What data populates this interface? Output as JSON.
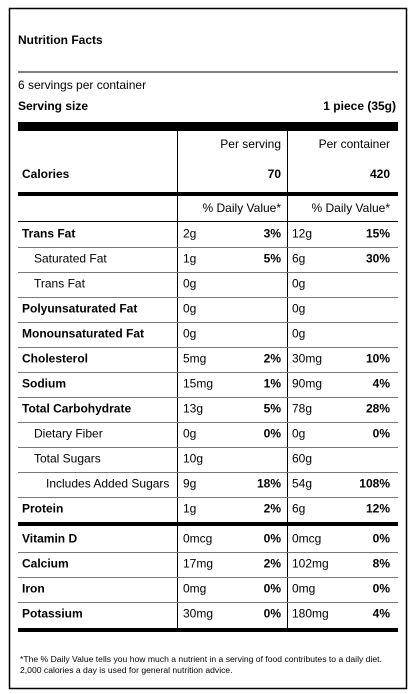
{
  "title": "Nutrition Facts",
  "servings": "6 servings per container",
  "serving_size": {
    "label": "Serving size",
    "value": "1 piece (35g)"
  },
  "columns": {
    "per_serving": "Per serving",
    "per_container": "Per container"
  },
  "calories": {
    "label": "Calories",
    "per_serving": "70",
    "per_container": "420"
  },
  "daily_value_header": {
    "per_serving": "% Daily Value*",
    "per_container": "% Daily Value*"
  },
  "nutrients": [
    {
      "name": "Trans Fat",
      "level": 0,
      "bold": true,
      "serving": "2g",
      "serving_dv": "3%",
      "container": "12g",
      "container_dv": "15%"
    },
    {
      "name": "Saturated Fat",
      "level": 1,
      "bold": false,
      "serving": "1g",
      "serving_dv": "5%",
      "container": "6g",
      "container_dv": "30%"
    },
    {
      "name": "Trans Fat",
      "level": 1,
      "bold": false,
      "serving": "0g",
      "container": "0g"
    },
    {
      "name": "Polyunsaturated Fat",
      "level": 0,
      "bold": true,
      "serving": "0g",
      "container": "0g"
    },
    {
      "name": "Monounsaturated Fat",
      "level": 0,
      "bold": true,
      "serving": "0g",
      "container": "0g"
    },
    {
      "name": "Cholesterol",
      "level": 0,
      "bold": true,
      "serving": "5mg",
      "serving_dv": "2%",
      "container": "30mg",
      "container_dv": "10%"
    },
    {
      "name": "Sodium",
      "level": 0,
      "bold": true,
      "serving": "15mg",
      "serving_dv": "1%",
      "container": "90mg",
      "container_dv": "4%"
    },
    {
      "name": "Total Carbohydrate",
      "level": 0,
      "bold": true,
      "serving": "13g",
      "serving_dv": "5%",
      "container": "78g",
      "container_dv": "28%"
    },
    {
      "name": "Dietary Fiber",
      "level": 1,
      "bold": false,
      "serving": "0g",
      "serving_dv": "0%",
      "container": "0g",
      "container_dv": "0%"
    },
    {
      "name": "Total Sugars",
      "level": 1,
      "bold": false,
      "serving": "10g",
      "container": "60g"
    },
    {
      "name": "Includes Added Sugars",
      "level": 2,
      "bold": false,
      "serving": "9g",
      "serving_dv": "18%",
      "container": "54g",
      "container_dv": "108%"
    },
    {
      "name": "Protein",
      "level": 0,
      "bold": true,
      "serving": "1g",
      "serving_dv": "2%",
      "container": "6g",
      "container_dv": "12%"
    }
  ],
  "vitamins": [
    {
      "name": "Vitamin D",
      "level": 0,
      "bold": true,
      "serving": "0mcg",
      "serving_dv": "0%",
      "container": "0mcg",
      "container_dv": "0%"
    },
    {
      "name": "Calcium",
      "level": 0,
      "bold": true,
      "serving": "17mg",
      "serving_dv": "2%",
      "container": "102mg",
      "container_dv": "8%"
    },
    {
      "name": "Iron",
      "level": 0,
      "bold": true,
      "serving": "0mg",
      "serving_dv": "0%",
      "container": "0mg",
      "container_dv": "0%"
    },
    {
      "name": "Potassium",
      "level": 0,
      "bold": true,
      "serving": "30mg",
      "serving_dv": "0%",
      "container": "180mg",
      "container_dv": "4%"
    }
  ],
  "footnote": "*The % Daily Value tells you how much a nutrient in a serving of food contributes to a daily diet. 2,000 calories a day is used for general nutrition advice."
}
